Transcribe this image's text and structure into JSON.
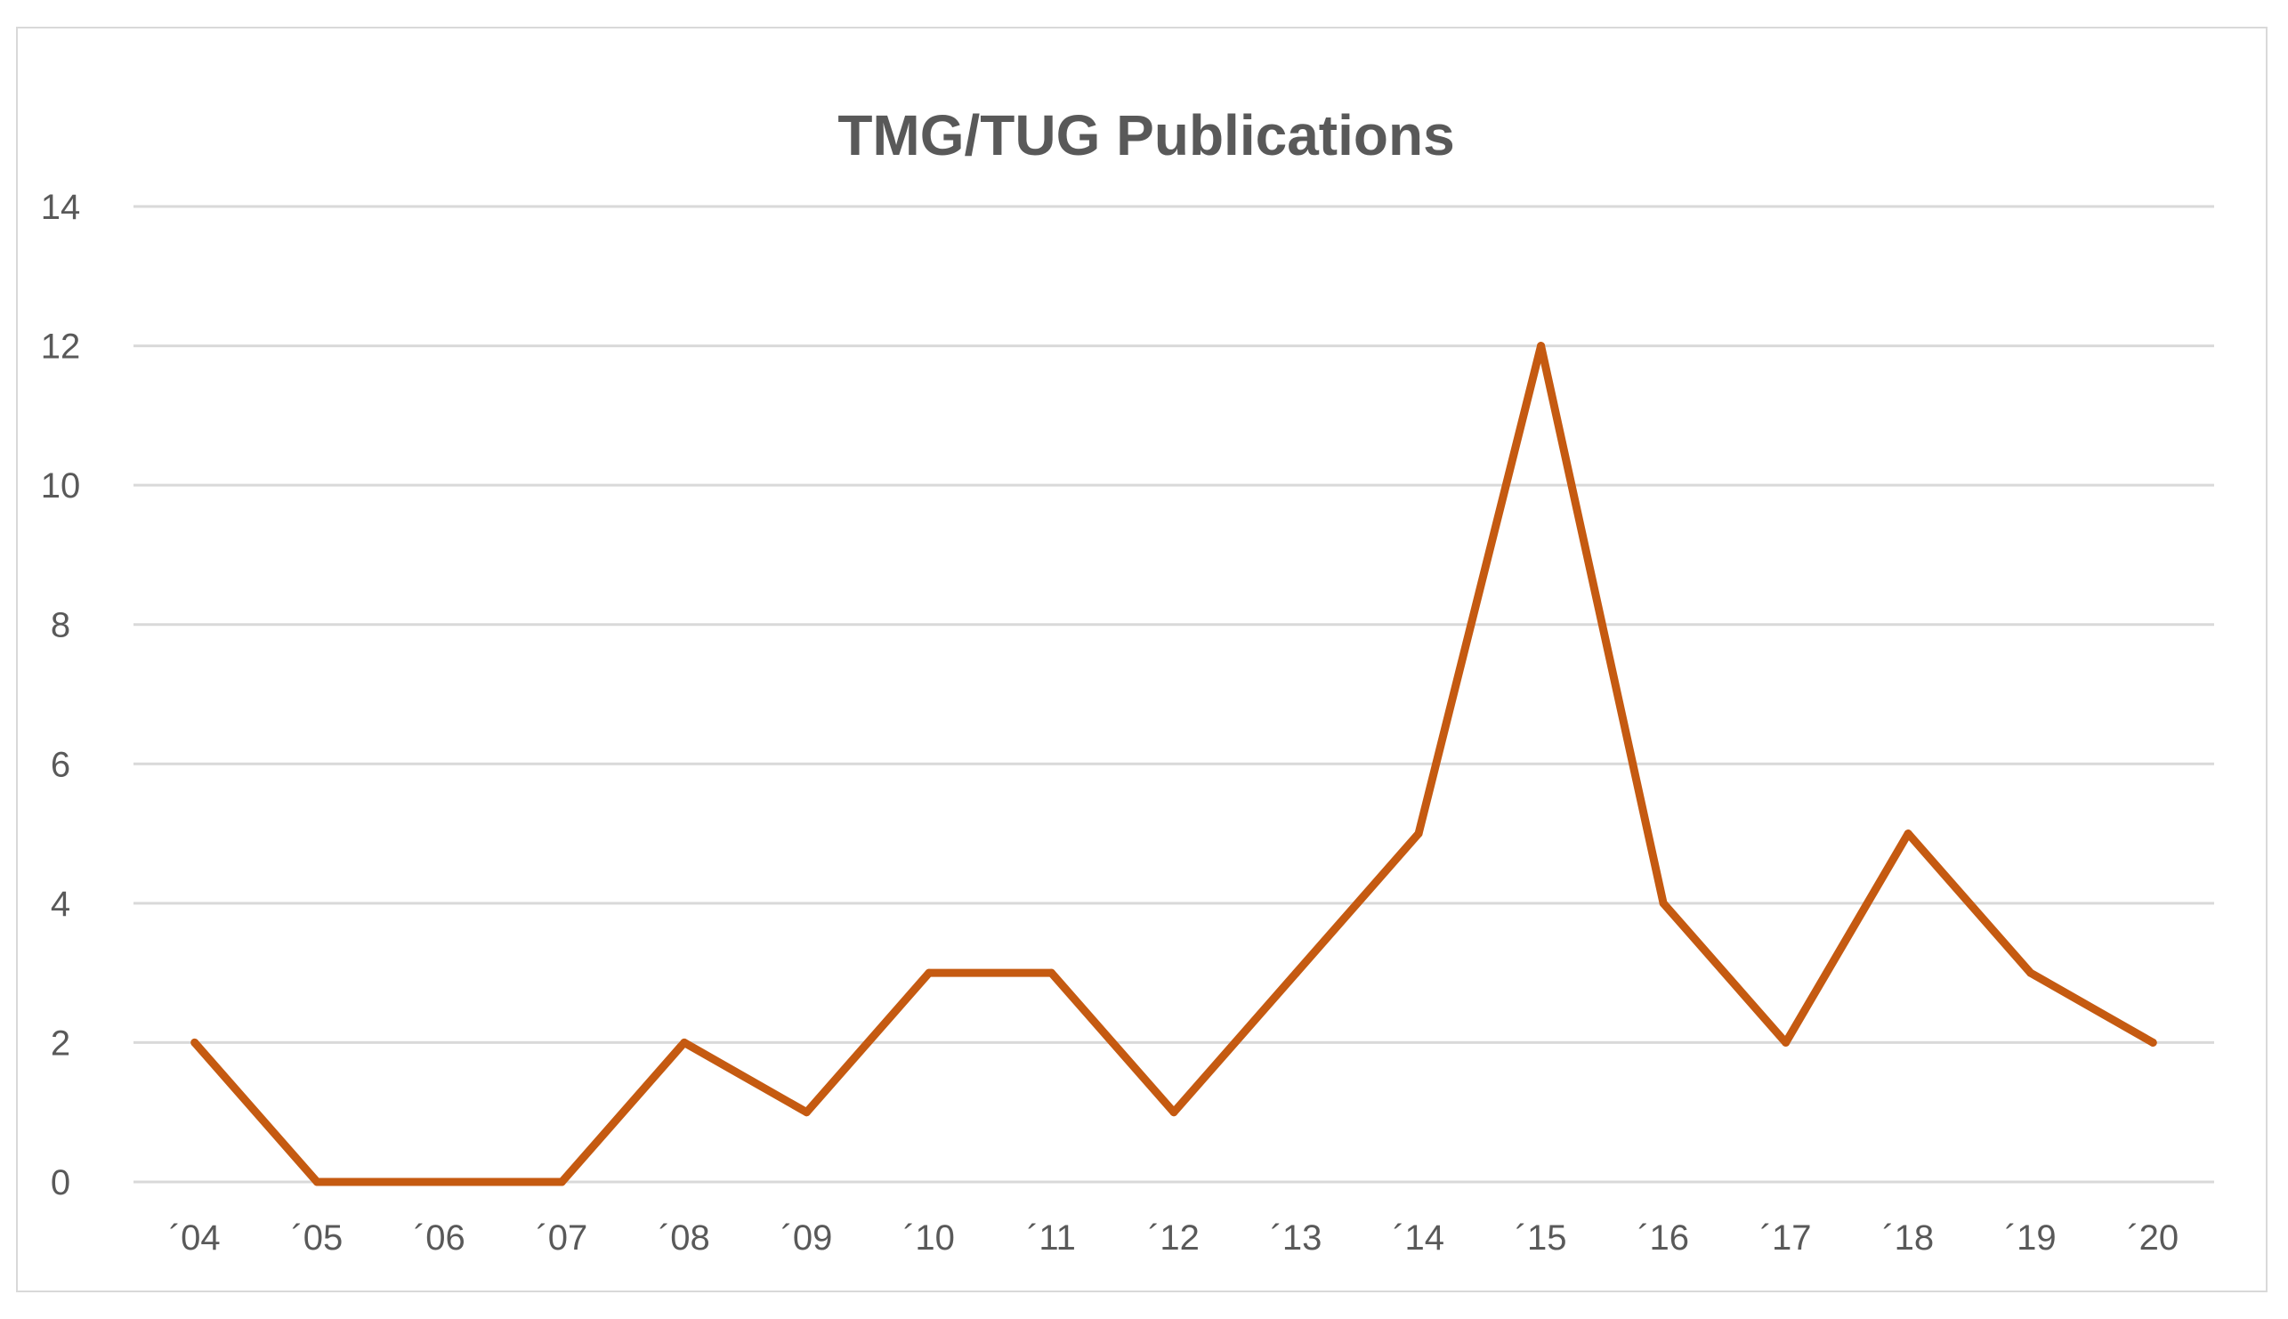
{
  "colors": {
    "series": "#C55A11",
    "gridline": "#D9D9D9",
    "text": "#595959",
    "border": "#D9D9D9"
  },
  "chart_data": {
    "type": "line",
    "title": "TMG/TUG Publications",
    "xlabel": "",
    "ylabel": "",
    "categories": [
      "´04",
      "´05",
      "´06",
      "´07",
      "´08",
      "´09",
      "´10",
      "´11",
      "´12",
      "´13",
      "´14",
      "´15",
      "´16",
      "´17",
      "´18",
      "´19",
      "´20"
    ],
    "series": [
      {
        "values": [
          2,
          0,
          0,
          0,
          2,
          1,
          3,
          3,
          1,
          3,
          5,
          12,
          4,
          2,
          5,
          3,
          2
        ]
      }
    ],
    "ylim": [
      0,
      14
    ],
    "yticks": [
      0,
      2,
      4,
      6,
      8,
      10,
      12,
      14
    ],
    "grid": true,
    "legend": "none"
  }
}
